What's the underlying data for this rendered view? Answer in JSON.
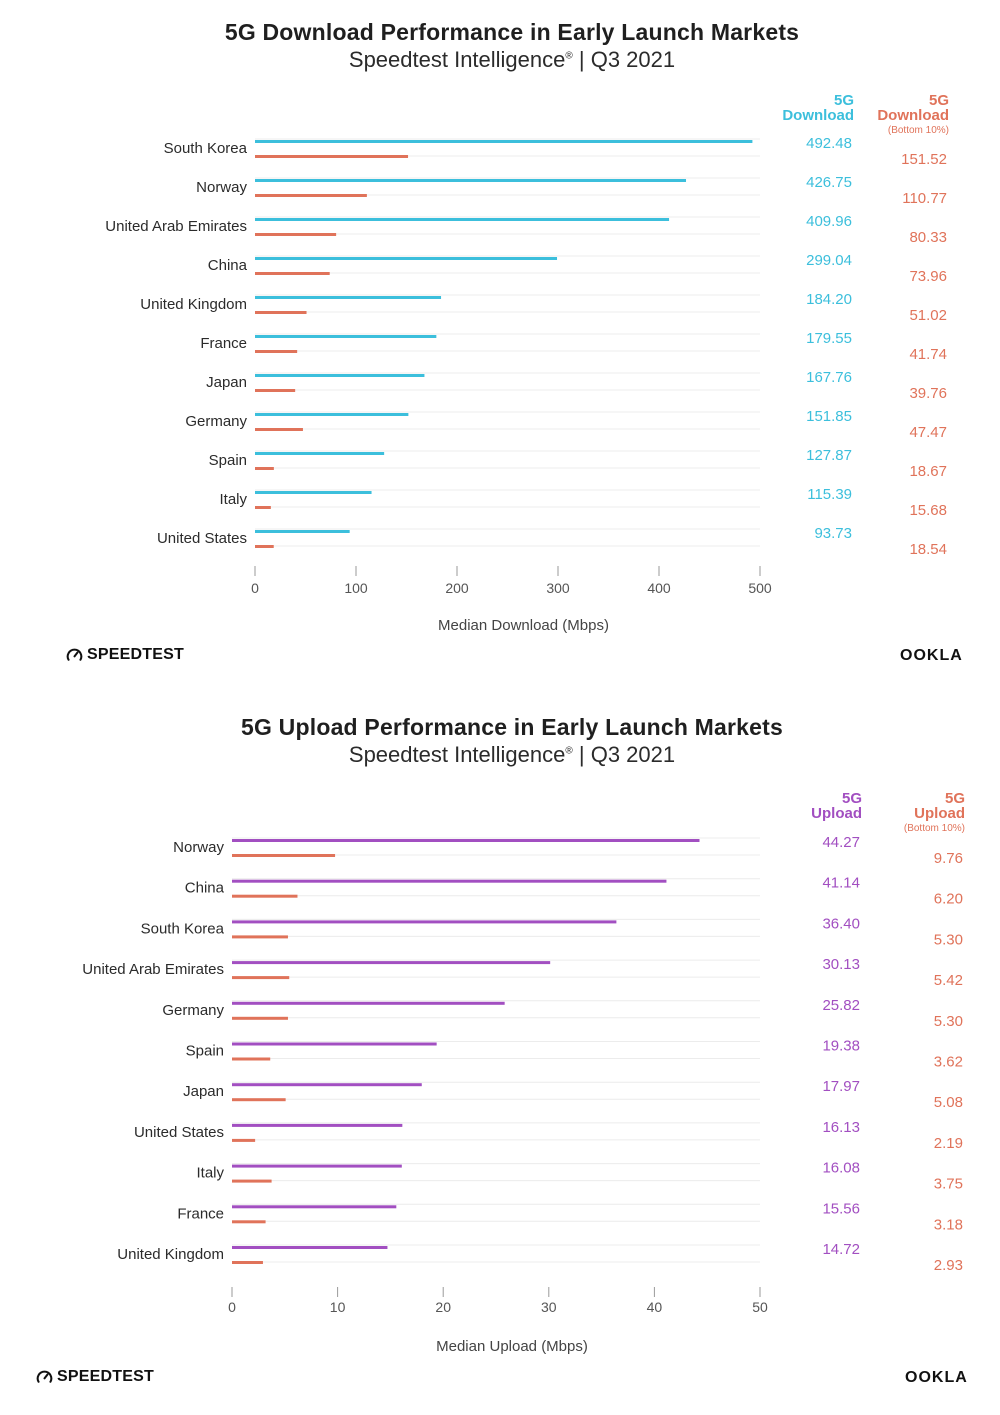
{
  "colors": {
    "download": "#3cbfdc",
    "upload": "#a24fc1",
    "bottom10": "#e0735a",
    "grid": "#ececec",
    "axis": "#9a9a9a",
    "text": "#2b2b2b"
  },
  "chart_data": [
    {
      "type": "bar",
      "orientation": "horizontal",
      "title": "5G Download Performance in Early Launch Markets",
      "subtitle": "Speedtest Intelligence",
      "subtitle_mark": "®",
      "subtitle_suffix": " | Q3 2021",
      "xlabel": "Median Download (Mbps)",
      "xlim": [
        0,
        500
      ],
      "xticks": [
        0,
        100,
        200,
        300,
        400,
        500
      ],
      "grid": true,
      "categories": [
        "South Korea",
        "Norway",
        "United Arab Emirates",
        "China",
        "United Kingdom",
        "France",
        "Japan",
        "Germany",
        "Spain",
        "Italy",
        "United States"
      ],
      "series": [
        {
          "name": "5G Download",
          "header": [
            "5G",
            "Download"
          ],
          "values": [
            492.48,
            426.75,
            409.96,
            299.04,
            184.2,
            179.55,
            167.76,
            151.85,
            127.87,
            115.39,
            93.73
          ]
        },
        {
          "name": "5G Download (Bottom 10%)",
          "header": [
            "5G",
            "Download"
          ],
          "note": "(Bottom 10%)",
          "values": [
            151.52,
            110.77,
            80.33,
            73.96,
            51.02,
            41.74,
            39.76,
            47.47,
            18.67,
            15.68,
            18.54
          ]
        }
      ]
    },
    {
      "type": "bar",
      "orientation": "horizontal",
      "title": "5G Upload Performance in Early Launch Markets",
      "subtitle": "Speedtest Intelligence",
      "subtitle_mark": "®",
      "subtitle_suffix": " | Q3 2021",
      "xlabel": "Median Upload (Mbps)",
      "xlim": [
        0,
        50
      ],
      "xticks": [
        0,
        10,
        20,
        30,
        40,
        50
      ],
      "grid": true,
      "categories": [
        "Norway",
        "China",
        "South Korea",
        "United Arab Emirates",
        "Germany",
        "Spain",
        "Japan",
        "United States",
        "Italy",
        "France",
        "United Kingdom"
      ],
      "series": [
        {
          "name": "5G Upload",
          "header": [
            "5G",
            "Upload"
          ],
          "values": [
            44.27,
            41.14,
            36.4,
            30.13,
            25.82,
            19.38,
            17.97,
            16.13,
            16.08,
            15.56,
            14.72
          ]
        },
        {
          "name": "5G Upload (Bottom 10%)",
          "header": [
            "5G",
            "Upload"
          ],
          "note": "(Bottom 10%)",
          "values": [
            9.76,
            6.2,
            5.3,
            5.42,
            5.3,
            3.62,
            5.08,
            2.19,
            3.75,
            3.18,
            2.93
          ]
        }
      ]
    }
  ],
  "logos": {
    "speedtest": "SPEEDTEST",
    "ookla": "OOKLA"
  },
  "icons": {
    "speedtest": "gauge-icon"
  }
}
